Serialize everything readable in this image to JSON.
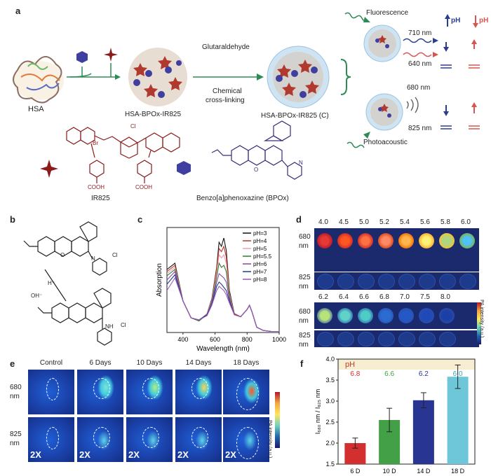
{
  "panels": {
    "a": "a",
    "b": "b",
    "c": "c",
    "d": "d",
    "e": "e",
    "f": "f"
  },
  "panel_a": {
    "hsa": "HSA",
    "glutaraldehyde": "Glutaraldehyde",
    "crosslink_1": "Chemical",
    "crosslink_2": "cross-linking",
    "np1": "HSA-BPOx-IR825",
    "np2": "HSA-BPOx-IR825 (C)",
    "fluorescence": "Fluorescence",
    "photoacoustic": "Photoacoustic",
    "nm710": "710 nm",
    "nm640": "640 nm",
    "nm680": "680 nm",
    "nm825": "825 nm",
    "ph1": "pH",
    "ph2": "pH",
    "ir825": "IR825",
    "bpox": "Benzo[a]phenoxazine (BPOx)",
    "cl": "Cl",
    "br": "Br",
    "cooh1": "COOH",
    "cooh2": "COOH",
    "n": "N",
    "o": "O"
  },
  "panel_b": {
    "hplus": "H⁺",
    "ohminus": "OH⁻",
    "cl1": "Cl",
    "cl2": "Cl",
    "n": "N",
    "nh": "NH",
    "o": "O"
  },
  "chart_data": [
    {
      "type": "line",
      "xlabel": "Wavelength (nm)",
      "ylabel": "Absorption",
      "xlim": [
        300,
        1000
      ],
      "xticks": [
        "400",
        "600",
        "800",
        "1000"
      ],
      "series": [
        {
          "name": "pH=3",
          "color": "#111111",
          "x": [
            300,
            350,
            400,
            450,
            500,
            550,
            580,
            610,
            625,
            640,
            655,
            670,
            690,
            720,
            760,
            800,
            815,
            830,
            860,
            900,
            950,
            1000
          ],
          "y": [
            0.6,
            0.66,
            0.3,
            0.14,
            0.11,
            0.18,
            0.32,
            0.62,
            0.86,
            0.82,
            0.9,
            0.78,
            0.4,
            0.18,
            0.15,
            0.22,
            0.26,
            0.2,
            0.05,
            0.02,
            0.01,
            0.01
          ]
        },
        {
          "name": "pH=4",
          "color": "#c0392b",
          "x": [
            300,
            350,
            400,
            450,
            500,
            550,
            580,
            610,
            625,
            640,
            655,
            670,
            690,
            720,
            760,
            800,
            815,
            830,
            860,
            900,
            950,
            1000
          ],
          "y": [
            0.58,
            0.64,
            0.3,
            0.14,
            0.11,
            0.18,
            0.31,
            0.6,
            0.8,
            0.77,
            0.82,
            0.72,
            0.38,
            0.18,
            0.15,
            0.22,
            0.26,
            0.2,
            0.05,
            0.02,
            0.01,
            0.01
          ]
        },
        {
          "name": "pH=5",
          "color": "#e8a0b0",
          "x": [
            300,
            350,
            400,
            450,
            500,
            550,
            580,
            610,
            625,
            640,
            655,
            670,
            690,
            720,
            760,
            800,
            815,
            830,
            860,
            900,
            950,
            1000
          ],
          "y": [
            0.56,
            0.62,
            0.3,
            0.14,
            0.11,
            0.18,
            0.3,
            0.57,
            0.74,
            0.71,
            0.74,
            0.66,
            0.36,
            0.17,
            0.15,
            0.22,
            0.26,
            0.2,
            0.05,
            0.02,
            0.01,
            0.01
          ]
        },
        {
          "name": "pH=5.5",
          "color": "#2e7d32",
          "x": [
            300,
            350,
            400,
            450,
            500,
            550,
            580,
            610,
            625,
            640,
            655,
            670,
            690,
            720,
            760,
            800,
            815,
            830,
            860,
            900,
            950,
            1000
          ],
          "y": [
            0.54,
            0.6,
            0.3,
            0.14,
            0.11,
            0.17,
            0.29,
            0.53,
            0.66,
            0.62,
            0.64,
            0.58,
            0.34,
            0.17,
            0.15,
            0.22,
            0.26,
            0.2,
            0.05,
            0.02,
            0.01,
            0.01
          ]
        },
        {
          "name": "pH=6",
          "color": "#8e44ad",
          "x": [
            300,
            350,
            400,
            450,
            500,
            550,
            580,
            610,
            625,
            640,
            655,
            670,
            690,
            720,
            760,
            800,
            815,
            830,
            860,
            900,
            950,
            1000
          ],
          "y": [
            0.5,
            0.58,
            0.3,
            0.14,
            0.12,
            0.17,
            0.28,
            0.48,
            0.56,
            0.54,
            0.52,
            0.48,
            0.32,
            0.17,
            0.15,
            0.22,
            0.26,
            0.2,
            0.05,
            0.02,
            0.01,
            0.01
          ]
        },
        {
          "name": "pH=7",
          "color": "#1f3a93",
          "x": [
            300,
            350,
            400,
            450,
            500,
            550,
            580,
            610,
            625,
            640,
            655,
            670,
            690,
            720,
            760,
            800,
            815,
            830,
            860,
            900,
            950,
            1000
          ],
          "y": [
            0.46,
            0.55,
            0.3,
            0.14,
            0.12,
            0.17,
            0.27,
            0.44,
            0.48,
            0.46,
            0.43,
            0.4,
            0.3,
            0.17,
            0.15,
            0.22,
            0.26,
            0.2,
            0.05,
            0.02,
            0.01,
            0.01
          ]
        },
        {
          "name": "pH=8",
          "color": "#9b59b6",
          "x": [
            300,
            350,
            400,
            450,
            500,
            550,
            580,
            610,
            625,
            640,
            655,
            670,
            690,
            720,
            760,
            800,
            815,
            830,
            860,
            900,
            950,
            1000
          ],
          "y": [
            0.4,
            0.52,
            0.3,
            0.14,
            0.12,
            0.16,
            0.26,
            0.4,
            0.44,
            0.42,
            0.4,
            0.36,
            0.28,
            0.17,
            0.15,
            0.22,
            0.26,
            0.2,
            0.05,
            0.02,
            0.01,
            0.01
          ]
        }
      ]
    },
    {
      "type": "bar",
      "categories": [
        "6 D",
        "10 D",
        "14 D",
        "18 D"
      ],
      "values": [
        2.0,
        2.55,
        3.02,
        3.58
      ],
      "errors": [
        0.12,
        0.28,
        0.18,
        0.28
      ],
      "colors": [
        "#d32f2f",
        "#43a047",
        "#283593",
        "#6ec6d9"
      ],
      "ph_header": "pH",
      "ph_values": [
        "6.8",
        "6.6",
        "6.2",
        "6.0"
      ],
      "ylabel": "I₆₈₀ nm / I₈₂₅ nm",
      "ylim": [
        1.5,
        4.0
      ],
      "yticks": [
        "1.5",
        "2.0",
        "2.5",
        "3.0",
        "3.5",
        "4.0"
      ]
    }
  ],
  "panel_d": {
    "top_ph": [
      "4.0",
      "4.5",
      "5.0",
      "5.2",
      "5.4",
      "5.6",
      "5.8",
      "6.0"
    ],
    "bottom_ph": [
      "6.2",
      "6.4",
      "6.6",
      "6.8",
      "7.0",
      "7.5",
      "8.0"
    ],
    "row680": "680",
    "row825": "825",
    "nm": "nm",
    "colorbar": "PA intensity (a.u.)"
  },
  "panel_e": {
    "columns": [
      "Control",
      "6 Days",
      "10 Days",
      "14 Days",
      "18 Days"
    ],
    "row680": "680",
    "row825": "825",
    "nm": "nm",
    "zoom": "2X",
    "colorbar": "PA intensity (a.u.)"
  }
}
